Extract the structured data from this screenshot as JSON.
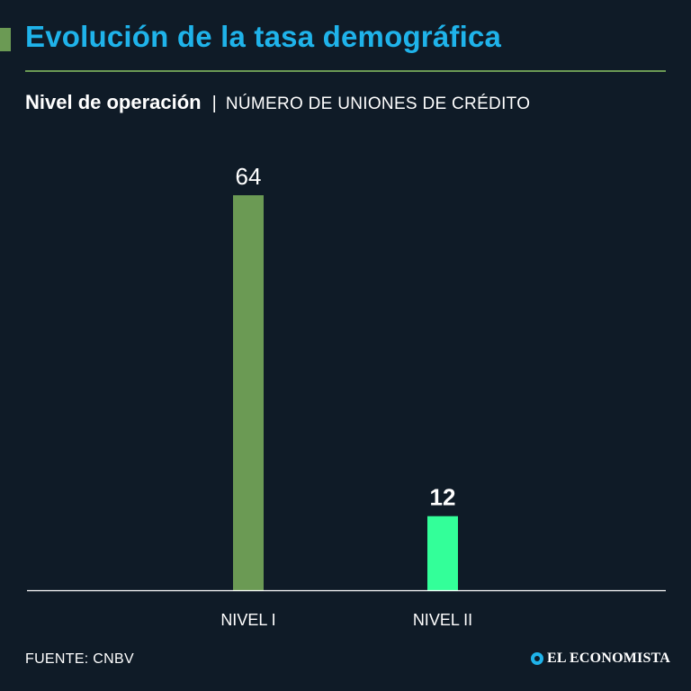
{
  "header": {
    "title": "Evolución de la tasa demográfica",
    "subtitle_main": "Nivel de operación",
    "subtitle_separator": "|",
    "subtitle_unit": "NÚMERO DE UNIONES DE CRÉDITO"
  },
  "footer": {
    "source": "FUENTE: CNBV",
    "brand": "EL ECONOMISTA"
  },
  "colors": {
    "background": "#0f1b27",
    "title": "#1fb3ea",
    "accent": "#6b9a54",
    "bar_nivel_1": "#6b9a54",
    "bar_nivel_2": "#33ff99"
  },
  "chart_data": {
    "type": "bar",
    "title": "Nivel de operación",
    "ylabel": "NÚMERO DE UNIONES DE CRÉDITO",
    "xlabel": "",
    "categories": [
      "NIVEL I",
      "NIVEL II"
    ],
    "values": [
      64,
      12
    ],
    "value_labels": [
      "64",
      "12"
    ],
    "ylim": [
      0,
      64
    ],
    "grid": false,
    "legend": "none"
  }
}
